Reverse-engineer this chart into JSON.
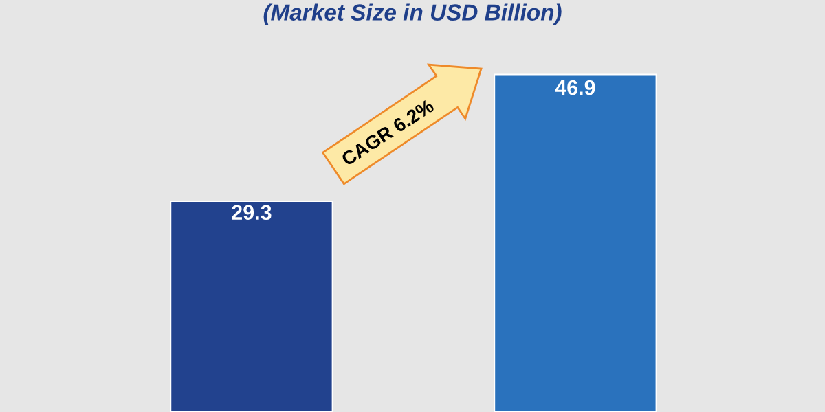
{
  "chart_data": {
    "type": "bar",
    "title": "(Market Size in USD Billion)",
    "categories": [
      null,
      null
    ],
    "values": [
      29.3,
      46.9
    ],
    "colors": [
      "#22428e",
      "#2a72bd"
    ],
    "data_labels": true,
    "legend": false,
    "annotations": [
      "CAGR 6.2%"
    ]
  }
}
